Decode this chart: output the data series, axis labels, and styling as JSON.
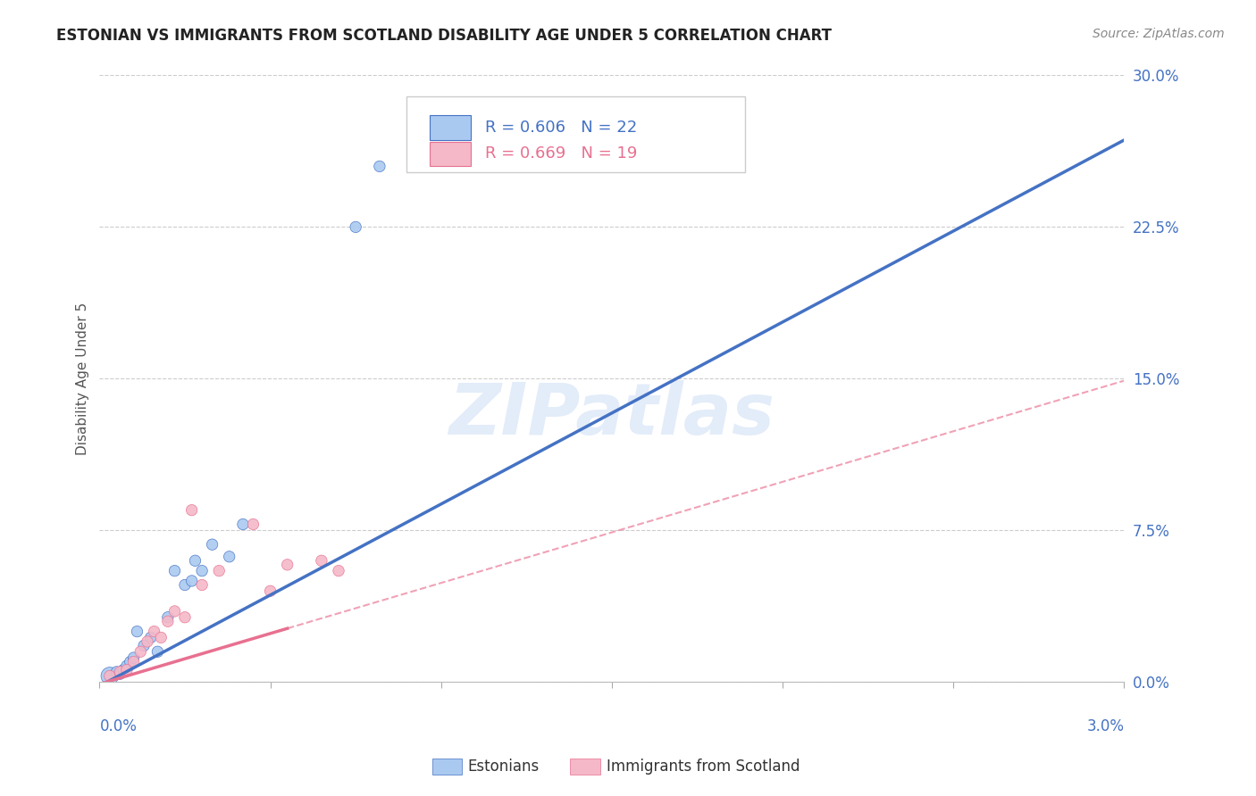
{
  "title": "ESTONIAN VS IMMIGRANTS FROM SCOTLAND DISABILITY AGE UNDER 5 CORRELATION CHART",
  "source": "Source: ZipAtlas.com",
  "ylabel": "Disability Age Under 5",
  "xlim": [
    0.0,
    3.0
  ],
  "ylim": [
    0.0,
    30.0
  ],
  "yticks": [
    0.0,
    7.5,
    15.0,
    22.5,
    30.0
  ],
  "xticks": [
    0.0,
    0.5,
    1.0,
    1.5,
    2.0,
    2.5,
    3.0
  ],
  "background_color": "#ffffff",
  "blue_series": {
    "label": "Estonians",
    "R": 0.606,
    "N": 22,
    "color": "#aac9f0",
    "line_color": "#4472c4",
    "x": [
      0.03,
      0.05,
      0.06,
      0.07,
      0.08,
      0.09,
      0.1,
      0.11,
      0.13,
      0.15,
      0.17,
      0.2,
      0.22,
      0.25,
      0.27,
      0.28,
      0.3,
      0.33,
      0.38,
      0.42,
      0.75,
      0.82
    ],
    "y": [
      0.3,
      0.5,
      0.4,
      0.6,
      0.8,
      1.0,
      1.2,
      2.5,
      1.8,
      2.2,
      1.5,
      3.2,
      5.5,
      4.8,
      5.0,
      6.0,
      5.5,
      6.8,
      6.2,
      7.8,
      22.5,
      25.5
    ],
    "sizes": [
      200,
      80,
      80,
      80,
      80,
      80,
      80,
      80,
      80,
      80,
      80,
      80,
      80,
      80,
      80,
      80,
      80,
      80,
      80,
      80,
      80,
      80
    ],
    "line_slope": 9.0,
    "line_intercept": -0.2
  },
  "pink_series": {
    "label": "Immigrants from Scotland",
    "R": 0.669,
    "N": 19,
    "color": "#f4b8c8",
    "line_color": "#e87090",
    "x": [
      0.03,
      0.06,
      0.08,
      0.1,
      0.12,
      0.14,
      0.16,
      0.18,
      0.2,
      0.22,
      0.25,
      0.27,
      0.3,
      0.35,
      0.45,
      0.5,
      0.55,
      0.65,
      0.7
    ],
    "y": [
      0.3,
      0.5,
      0.6,
      1.0,
      1.5,
      2.0,
      2.5,
      2.2,
      3.0,
      3.5,
      3.2,
      8.5,
      4.8,
      5.5,
      7.8,
      4.5,
      5.8,
      6.0,
      5.5
    ],
    "sizes": [
      80,
      80,
      80,
      80,
      80,
      80,
      80,
      80,
      80,
      80,
      80,
      80,
      80,
      80,
      80,
      80,
      80,
      80,
      80
    ],
    "line_slope": 5.0,
    "line_intercept": -0.1,
    "solid_end": 0.55,
    "dash_end": 3.0
  },
  "title_fontsize": 12,
  "source_fontsize": 10,
  "axis_label_fontsize": 11,
  "tick_fontsize": 12,
  "legend_fontsize": 13
}
